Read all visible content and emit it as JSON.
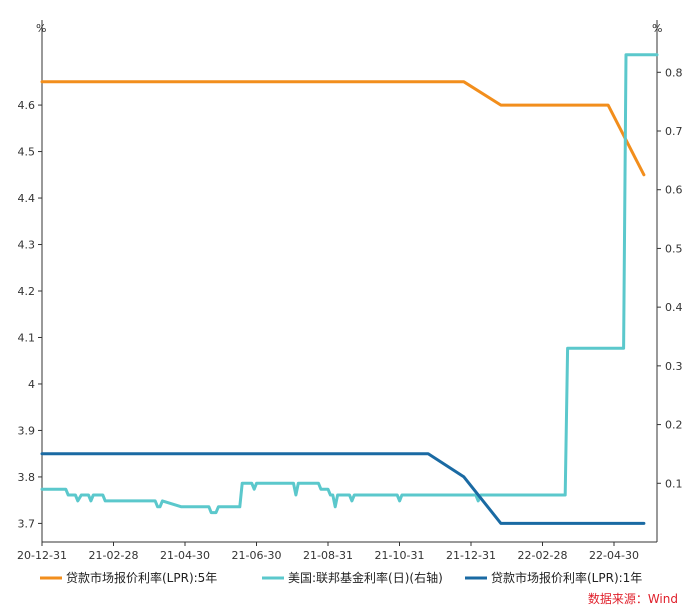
{
  "chart_data": {
    "type": "line",
    "left_unit": "%",
    "right_unit": "%",
    "ylim_left": [
      3.66,
      4.74
    ],
    "ylim_right": [
      0.0,
      0.855
    ],
    "left_ticks": [
      "4.6",
      "4.5",
      "4.4",
      "4.3",
      "4.2",
      "4.1",
      "4",
      "3.9",
      "3.8",
      "3.7"
    ],
    "right_ticks": [
      "0.8",
      "0.7",
      "0.6",
      "0.5",
      "0.4",
      "0.3",
      "0.2",
      "0.1"
    ],
    "x_ticks": [
      "20-12-31",
      "21-02-28",
      "21-04-30",
      "21-06-30",
      "21-08-31",
      "21-10-31",
      "21-12-31",
      "22-02-28",
      "22-04-30"
    ],
    "x_range": [
      "2020-12-31",
      "2022-05-31"
    ],
    "series": [
      {
        "name": "贷款市场报价利率(LPR):5年",
        "axis": "left",
        "color": "#f28e1c",
        "points": [
          [
            "2020-12-31",
            4.65
          ],
          [
            "2021-12-20",
            4.65
          ],
          [
            "2022-01-20",
            4.6
          ],
          [
            "2022-04-20",
            4.6
          ],
          [
            "2022-05-20",
            4.45
          ]
        ]
      },
      {
        "name": "美国:联邦基金利率(日)(右轴)",
        "axis": "right",
        "color": "#5bc8cc",
        "points": [
          [
            "2020-12-31",
            0.09
          ],
          [
            "2021-01-20",
            0.09
          ],
          [
            "2021-01-22",
            0.08
          ],
          [
            "2021-01-28",
            0.08
          ],
          [
            "2021-01-30",
            0.07
          ],
          [
            "2021-02-02",
            0.08
          ],
          [
            "2021-02-08",
            0.08
          ],
          [
            "2021-02-10",
            0.07
          ],
          [
            "2021-02-12",
            0.08
          ],
          [
            "2021-02-20",
            0.08
          ],
          [
            "2021-02-22",
            0.07
          ],
          [
            "2021-04-05",
            0.07
          ],
          [
            "2021-04-07",
            0.06
          ],
          [
            "2021-04-09",
            0.06
          ],
          [
            "2021-04-11",
            0.07
          ],
          [
            "2021-04-27",
            0.06
          ],
          [
            "2021-05-20",
            0.06
          ],
          [
            "2021-05-22",
            0.05
          ],
          [
            "2021-05-26",
            0.05
          ],
          [
            "2021-05-28",
            0.06
          ],
          [
            "2021-06-15",
            0.06
          ],
          [
            "2021-06-17",
            0.1
          ],
          [
            "2021-06-25",
            0.1
          ],
          [
            "2021-06-27",
            0.09
          ],
          [
            "2021-06-29",
            0.1
          ],
          [
            "2021-07-30",
            0.1
          ],
          [
            "2021-08-01",
            0.08
          ],
          [
            "2021-08-03",
            0.1
          ],
          [
            "2021-08-20",
            0.1
          ],
          [
            "2021-08-22",
            0.09
          ],
          [
            "2021-08-28",
            0.09
          ],
          [
            "2021-08-30",
            0.08
          ],
          [
            "2021-09-01",
            0.08
          ],
          [
            "2021-09-03",
            0.06
          ],
          [
            "2021-09-05",
            0.08
          ],
          [
            "2021-09-15",
            0.08
          ],
          [
            "2021-09-17",
            0.07
          ],
          [
            "2021-09-19",
            0.08
          ],
          [
            "2021-10-25",
            0.08
          ],
          [
            "2021-10-27",
            0.07
          ],
          [
            "2021-10-29",
            0.08
          ],
          [
            "2021-12-30",
            0.08
          ],
          [
            "2022-01-01",
            0.07
          ],
          [
            "2022-01-03",
            0.08
          ],
          [
            "2022-03-15",
            0.08
          ],
          [
            "2022-03-17",
            0.33
          ],
          [
            "2022-05-03",
            0.33
          ],
          [
            "2022-05-05",
            0.83
          ],
          [
            "2022-05-31",
            0.83
          ]
        ]
      },
      {
        "name": "贷款市场报价利率(LPR):1年",
        "axis": "left",
        "color": "#1a6aa3",
        "points": [
          [
            "2020-12-31",
            3.85
          ],
          [
            "2021-11-20",
            3.85
          ],
          [
            "2021-12-20",
            3.8
          ],
          [
            "2022-01-20",
            3.7
          ],
          [
            "2022-05-20",
            3.7
          ]
        ]
      }
    ]
  },
  "source": "数据来源：Wind"
}
